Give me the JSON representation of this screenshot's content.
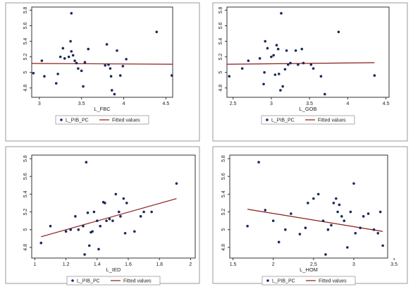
{
  "colors": {
    "panel_border": "#9a9a9a",
    "plot_border": "#333333",
    "marker": "#1b2a5a",
    "fit_line": "#8b1a1a",
    "text": "#222222"
  },
  "chart_data": [
    {
      "type": "scatter",
      "xlabel": "L_FBC",
      "x_ticks": [
        "3",
        "3.5",
        "4",
        "4.5"
      ],
      "y_ticks": [
        "4.8",
        "5",
        "5.2",
        "5.4",
        "5.6",
        "5.8"
      ],
      "xlim": [
        2.91,
        4.58
      ],
      "ylim": [
        4.68,
        5.84
      ],
      "series": [
        {
          "name": "L_PIB_PC",
          "points": [
            [
              2.93,
              4.99
            ],
            [
              3.03,
              5.15
            ],
            [
              3.06,
              4.95
            ],
            [
              3.2,
              4.86
            ],
            [
              3.22,
              4.98
            ],
            [
              3.25,
              5.2
            ],
            [
              3.28,
              5.31
            ],
            [
              3.3,
              5.18
            ],
            [
              3.35,
              5.2
            ],
            [
              3.37,
              5.4
            ],
            [
              3.38,
              5.76
            ],
            [
              3.38,
              5.27
            ],
            [
              3.4,
              5.22
            ],
            [
              3.42,
              5.15
            ],
            [
              3.44,
              5.12
            ],
            [
              3.46,
              5.05
            ],
            [
              3.5,
              5.02
            ],
            [
              3.52,
              4.82
            ],
            [
              3.54,
              5.13
            ],
            [
              3.58,
              5.3
            ],
            [
              3.78,
              5.09
            ],
            [
              3.8,
              5.36
            ],
            [
              3.82,
              5.1
            ],
            [
              3.84,
              5.05
            ],
            [
              3.85,
              4.95
            ],
            [
              3.86,
              4.77
            ],
            [
              3.89,
              4.72
            ],
            [
              3.92,
              5.28
            ],
            [
              3.96,
              4.96
            ],
            [
              3.99,
              5.08
            ],
            [
              4.03,
              5.17
            ],
            [
              4.39,
              5.52
            ],
            [
              4.57,
              4.96
            ]
          ]
        },
        {
          "name": "Fitted values",
          "line": [
            [
              2.91,
              5.115
            ],
            [
              4.58,
              5.105
            ]
          ]
        }
      ]
    },
    {
      "type": "scatter",
      "xlabel": "L_GOB",
      "x_ticks": [
        "2.5",
        "3",
        "3.5",
        "4",
        "4.5"
      ],
      "y_ticks": [
        "4.8",
        "5",
        "5.2",
        "5.4",
        "5.6",
        "5.8"
      ],
      "xlim": [
        2.42,
        4.54
      ],
      "ylim": [
        4.68,
        5.84
      ],
      "series": [
        {
          "name": "L_PIB_PC",
          "points": [
            [
              2.45,
              4.95
            ],
            [
              2.62,
              5.05
            ],
            [
              2.7,
              5.15
            ],
            [
              2.85,
              5.18
            ],
            [
              2.9,
              4.85
            ],
            [
              2.91,
              5.0
            ],
            [
              2.92,
              5.4
            ],
            [
              2.95,
              5.31
            ],
            [
              3.0,
              5.2
            ],
            [
              3.03,
              5.22
            ],
            [
              3.05,
              4.97
            ],
            [
              3.07,
              5.35
            ],
            [
              3.09,
              5.3
            ],
            [
              3.1,
              4.98
            ],
            [
              3.12,
              4.77
            ],
            [
              3.13,
              5.76
            ],
            [
              3.15,
              4.82
            ],
            [
              3.18,
              5.04
            ],
            [
              3.2,
              5.28
            ],
            [
              3.22,
              5.1
            ],
            [
              3.25,
              5.12
            ],
            [
              3.32,
              5.28
            ],
            [
              3.35,
              5.1
            ],
            [
              3.4,
              5.3
            ],
            [
              3.42,
              5.12
            ],
            [
              3.52,
              5.1
            ],
            [
              3.55,
              5.05
            ],
            [
              3.65,
              4.95
            ],
            [
              3.7,
              4.72
            ],
            [
              3.88,
              5.52
            ],
            [
              4.35,
              4.96
            ]
          ]
        },
        {
          "name": "Fitted values",
          "line": [
            [
              2.42,
              5.105
            ],
            [
              4.35,
              5.125
            ]
          ]
        }
      ]
    },
    {
      "type": "scatter",
      "xlabel": "L_IED",
      "x_ticks": [
        "1",
        "1.2",
        "1.4",
        "1.6",
        "1.8",
        "2"
      ],
      "y_ticks": [
        "4.8",
        "5",
        "5.2",
        "5.4",
        "5.6",
        "5.8"
      ],
      "xlim": [
        0.98,
        2.03
      ],
      "ylim": [
        4.68,
        5.84
      ],
      "series": [
        {
          "name": "L_PIB_PC",
          "points": [
            [
              1.04,
              4.85
            ],
            [
              1.1,
              5.04
            ],
            [
              1.2,
              4.98
            ],
            [
              1.23,
              5.0
            ],
            [
              1.26,
              5.15
            ],
            [
              1.28,
              5.0
            ],
            [
              1.31,
              5.04
            ],
            [
              1.32,
              4.72
            ],
            [
              1.33,
              5.76
            ],
            [
              1.34,
              5.19
            ],
            [
              1.35,
              4.82
            ],
            [
              1.36,
              4.97
            ],
            [
              1.37,
              4.98
            ],
            [
              1.38,
              5.2
            ],
            [
              1.4,
              5.1
            ],
            [
              1.41,
              4.78
            ],
            [
              1.42,
              5.04
            ],
            [
              1.44,
              5.31
            ],
            [
              1.45,
              5.3
            ],
            [
              1.46,
              5.1
            ],
            [
              1.48,
              5.12
            ],
            [
              1.5,
              5.1
            ],
            [
              1.52,
              5.4
            ],
            [
              1.54,
              5.2
            ],
            [
              1.55,
              5.15
            ],
            [
              1.57,
              5.35
            ],
            [
              1.58,
              4.96
            ],
            [
              1.59,
              5.3
            ],
            [
              1.64,
              4.98
            ],
            [
              1.68,
              5.15
            ],
            [
              1.7,
              5.2
            ],
            [
              1.75,
              5.2
            ],
            [
              1.91,
              5.52
            ]
          ]
        },
        {
          "name": "Fitted values",
          "line": [
            [
              1.04,
              4.92
            ],
            [
              1.91,
              5.35
            ]
          ]
        }
      ]
    },
    {
      "type": "scatter",
      "xlabel": "L_HOM",
      "x_ticks": [
        "1.5",
        "2",
        "2.5",
        "3",
        "3.5"
      ],
      "y_ticks": [
        "4.8",
        "5",
        "5.2",
        "5.4",
        "5.6",
        "5.8"
      ],
      "xlim": [
        1.46,
        3.42
      ],
      "ylim": [
        4.68,
        5.84
      ],
      "series": [
        {
          "name": "L_PIB_PC",
          "points": [
            [
              1.68,
              5.04
            ],
            [
              1.82,
              5.76
            ],
            [
              1.9,
              5.22
            ],
            [
              2.0,
              5.1
            ],
            [
              2.07,
              4.86
            ],
            [
              2.15,
              5.0
            ],
            [
              2.22,
              5.18
            ],
            [
              2.33,
              4.95
            ],
            [
              2.4,
              5.02
            ],
            [
              2.43,
              5.3
            ],
            [
              2.5,
              5.35
            ],
            [
              2.56,
              5.4
            ],
            [
              2.62,
              5.1
            ],
            [
              2.65,
              4.72
            ],
            [
              2.68,
              5.0
            ],
            [
              2.72,
              5.05
            ],
            [
              2.75,
              5.3
            ],
            [
              2.78,
              5.35
            ],
            [
              2.8,
              5.2
            ],
            [
              2.82,
              5.28
            ],
            [
              2.85,
              5.15
            ],
            [
              2.88,
              5.1
            ],
            [
              2.92,
              4.8
            ],
            [
              2.96,
              5.2
            ],
            [
              3.0,
              5.52
            ],
            [
              3.02,
              4.96
            ],
            [
              3.08,
              5.02
            ],
            [
              3.12,
              5.15
            ],
            [
              3.18,
              5.18
            ],
            [
              3.25,
              5.0
            ],
            [
              3.3,
              4.96
            ],
            [
              3.33,
              5.2
            ],
            [
              3.36,
              4.82
            ]
          ]
        },
        {
          "name": "Fitted values",
          "line": [
            [
              1.68,
              5.23
            ],
            [
              3.36,
              4.98
            ]
          ]
        }
      ]
    }
  ]
}
